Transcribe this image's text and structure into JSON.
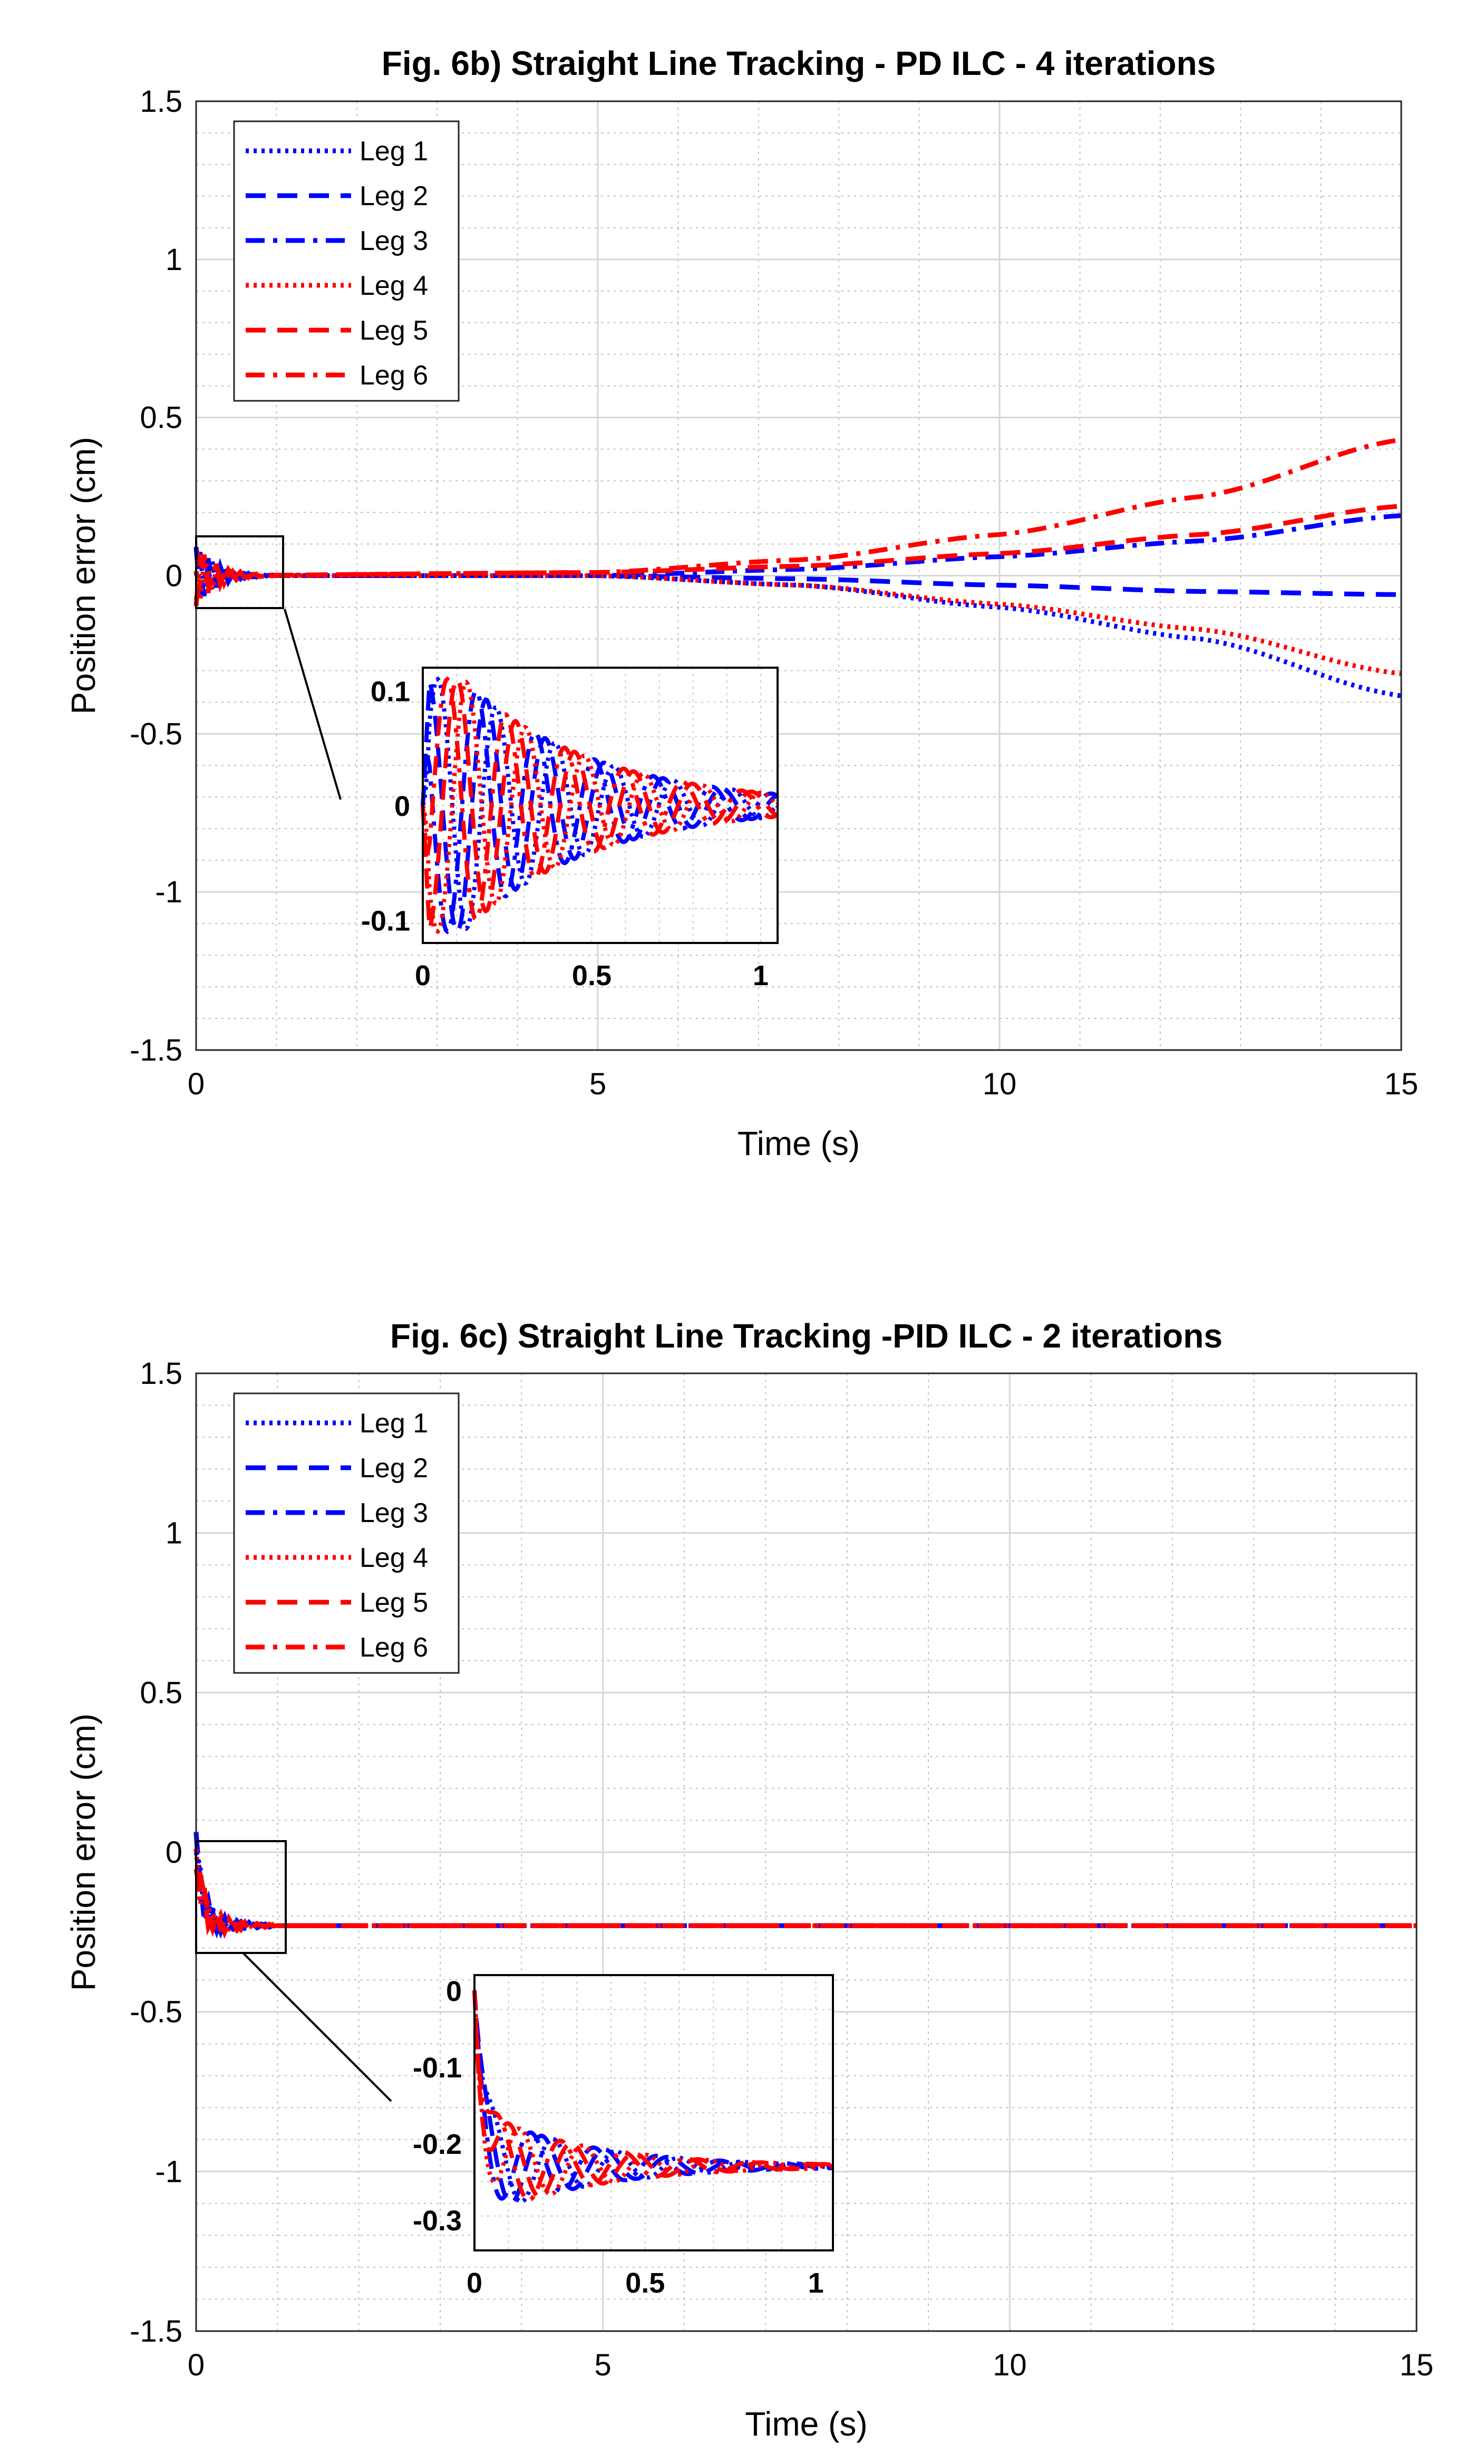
{
  "chart_data": [
    {
      "type": "line",
      "title": "Fig. 6b) Straight Line Tracking - PD ILC - 4 iterations",
      "xlabel": "Time (s)",
      "ylabel": "Position error (cm)",
      "xlim": [
        0,
        15
      ],
      "ylim": [
        -1.5,
        1.5
      ],
      "xticks": [
        "0",
        "5",
        "10",
        "15"
      ],
      "yticks": [
        "-1.5",
        "-1",
        "-0.5",
        "0",
        "0.5",
        "1",
        "1.5"
      ],
      "grid": true,
      "legend_position": "top-left",
      "series": [
        {
          "name": "Leg 1",
          "color": "#0000ff",
          "style": "dotted",
          "x": [
            0,
            5,
            7.5,
            10,
            12.5,
            15
          ],
          "y": [
            0,
            0.0,
            -0.03,
            -0.1,
            -0.2,
            -0.38
          ]
        },
        {
          "name": "Leg 2",
          "color": "#0000ff",
          "style": "dashed",
          "x": [
            0,
            5,
            7.5,
            10,
            12.5,
            15
          ],
          "y": [
            0,
            0.0,
            -0.01,
            -0.03,
            -0.05,
            -0.06
          ]
        },
        {
          "name": "Leg 3",
          "color": "#0000ff",
          "style": "dashdot",
          "x": [
            0,
            5,
            7.5,
            10,
            12.5,
            15
          ],
          "y": [
            0,
            0.0,
            0.02,
            0.06,
            0.11,
            0.19
          ]
        },
        {
          "name": "Leg 4",
          "color": "#ff0000",
          "style": "dotted",
          "x": [
            0,
            5,
            7.5,
            10,
            12.5,
            15
          ],
          "y": [
            0,
            0.0,
            -0.03,
            -0.09,
            -0.17,
            -0.31
          ]
        },
        {
          "name": "Leg 5",
          "color": "#ff0000",
          "style": "dashed",
          "x": [
            0,
            5,
            7.5,
            10,
            12.5,
            15
          ],
          "y": [
            0,
            0.01,
            0.03,
            0.07,
            0.13,
            0.22
          ]
        },
        {
          "name": "Leg 6",
          "color": "#ff0000",
          "style": "dashdot",
          "x": [
            0,
            5,
            7.5,
            10,
            12.5,
            15
          ],
          "y": [
            0,
            0.01,
            0.05,
            0.13,
            0.25,
            0.43
          ]
        }
      ],
      "inset": {
        "xlim": [
          0,
          1.05
        ],
        "ylim": [
          -0.12,
          0.12
        ],
        "xticks": [
          "0",
          "0.5",
          "1"
        ],
        "yticks": [
          "-0.1",
          "0",
          "0.1"
        ],
        "steady_value": 0
      }
    },
    {
      "type": "line",
      "title": "Fig. 6c) Straight Line Tracking -PID ILC - 2 iterations",
      "xlabel": "Time (s)",
      "ylabel": "Position error (cm)",
      "xlim": [
        0,
        15
      ],
      "ylim": [
        -1.5,
        1.5
      ],
      "xticks": [
        "0",
        "5",
        "10",
        "15"
      ],
      "yticks": [
        "-1.5",
        "-1",
        "-0.5",
        "0",
        "0.5",
        "1",
        "1.5"
      ],
      "grid": true,
      "legend_position": "top-left",
      "series": [
        {
          "name": "Leg 1",
          "color": "#0000ff",
          "style": "dotted",
          "x": [
            0,
            1,
            15
          ],
          "y": [
            0,
            -0.23,
            -0.23
          ]
        },
        {
          "name": "Leg 2",
          "color": "#0000ff",
          "style": "dashed",
          "x": [
            0,
            1,
            15
          ],
          "y": [
            0,
            -0.23,
            -0.23
          ]
        },
        {
          "name": "Leg 3",
          "color": "#0000ff",
          "style": "dashdot",
          "x": [
            0,
            1,
            15
          ],
          "y": [
            0,
            -0.23,
            -0.23
          ]
        },
        {
          "name": "Leg 4",
          "color": "#ff0000",
          "style": "dotted",
          "x": [
            0,
            1,
            15
          ],
          "y": [
            0,
            -0.23,
            -0.23
          ]
        },
        {
          "name": "Leg 5",
          "color": "#ff0000",
          "style": "dashed",
          "x": [
            0,
            1,
            15
          ],
          "y": [
            0,
            -0.23,
            -0.23
          ]
        },
        {
          "name": "Leg 6",
          "color": "#ff0000",
          "style": "dashdot",
          "x": [
            0,
            1,
            15
          ],
          "y": [
            0,
            -0.23,
            -0.23
          ]
        }
      ],
      "inset": {
        "xlim": [
          0,
          1.05
        ],
        "ylim": [
          -0.34,
          0.02
        ],
        "xticks": [
          "0",
          "0.5",
          "1"
        ],
        "yticks": [
          "0",
          "-0.1",
          "-0.2",
          "-0.3"
        ],
        "steady_value": -0.23
      }
    }
  ]
}
